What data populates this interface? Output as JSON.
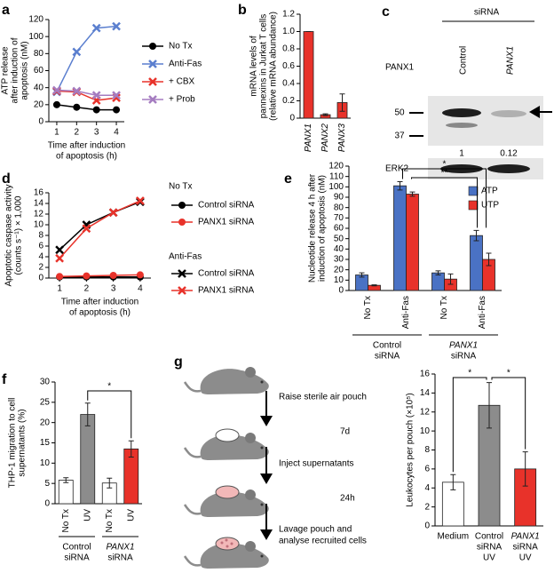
{
  "panel_labels": [
    "a",
    "b",
    "c",
    "d",
    "e",
    "f",
    "g"
  ],
  "chart_data": [
    {
      "type": "line",
      "ylabel": [
        "ATP release",
        "after induction of",
        "apoptosis (nM)"
      ],
      "xlabel": [
        "Time after induction",
        "of apoptosis (h)"
      ],
      "x": [
        1,
        2,
        3,
        4
      ],
      "xlim": [
        0.6,
        4.4
      ],
      "xticks": [
        1,
        2,
        3,
        4
      ],
      "ylim": [
        0,
        120
      ],
      "yticks": [
        0,
        20,
        40,
        60,
        80,
        100,
        120
      ],
      "series": [
        {
          "name": "No Tx",
          "color": "#000000",
          "marker": "circle",
          "values": [
            20,
            17,
            14,
            14
          ]
        },
        {
          "name": "Anti-Fas",
          "color": "#5b7fcf",
          "marker": "cross",
          "values": [
            35,
            82,
            110,
            112
          ]
        },
        {
          "name": "+ CBX",
          "color": "#e8322a",
          "marker": "cross",
          "values": [
            36,
            35,
            25,
            28
          ]
        },
        {
          "name": "+ Prob",
          "color": "#a57cc0",
          "marker": "cross",
          "values": [
            37,
            36,
            31,
            31
          ]
        }
      ]
    },
    {
      "type": "bar",
      "ylabel": [
        "mRNA levels of",
        "pannexins in Jurkat T cells",
        "(relative mRNA abundance)"
      ],
      "categories": [
        "PANX1",
        "PANX2",
        "PANX3"
      ],
      "values": [
        1,
        0.04,
        0.18
      ],
      "errors": [
        0,
        0.01,
        0.1
      ],
      "color": "#e8322a",
      "ylim": [
        0,
        1.2
      ],
      "yticks": [
        0,
        0.2,
        0.4,
        0.6,
        0.8,
        {
          "value": 1,
          "label": "1.0"
        },
        1.2
      ]
    },
    {
      "type": "line",
      "ylabel": [
        "Apoptotic caspase activity",
        "(counts s⁻¹) × 1,000"
      ],
      "xlabel": [
        "Time after induction",
        "of apoptosis (h)"
      ],
      "x": [
        1,
        2,
        3,
        4
      ],
      "xlim": [
        0.6,
        4.4
      ],
      "xticks": [
        1,
        2,
        3,
        4
      ],
      "ylim": [
        0,
        16
      ],
      "yticks": [
        0,
        2,
        4,
        6,
        8,
        10,
        12,
        14,
        16
      ],
      "series_groups": [
        {
          "name": "No Tx",
          "series": [
            {
              "name": "Control siRNA",
              "color": "#000000",
              "marker": "circle",
              "values": [
                0.2,
                0.2,
                0.2,
                0.2
              ]
            },
            {
              "name": "PANX1 siRNA",
              "color": "#e8322a",
              "marker": "circle",
              "values": [
                0.3,
                0.4,
                0.5,
                0.6
              ]
            }
          ]
        },
        {
          "name": "Anti-Fas",
          "series": [
            {
              "name": "Control siRNA",
              "color": "#000000",
              "marker": "cross",
              "values": [
                5.3,
                10,
                12.3,
                14.3
              ]
            },
            {
              "name": "PANX1 siRNA",
              "color": "#e8322a",
              "marker": "cross",
              "values": [
                3.7,
                9.3,
                12.3,
                14.5
              ]
            }
          ]
        }
      ]
    },
    {
      "type": "bar",
      "ylabel": [
        "Nucleotide release 4 h after",
        "induction of apoptosis (nM)"
      ],
      "categories": [
        "No Tx",
        "Anti-Fas",
        "No Tx",
        "Anti-Fas"
      ],
      "series": [
        {
          "name": "ATP",
          "color": "#4a72c4",
          "values": [
            15,
            101,
            17,
            53
          ],
          "errors": [
            2,
            4,
            2,
            5
          ]
        },
        {
          "name": "UTP",
          "color": "#e8322a",
          "values": [
            5,
            93,
            11,
            30
          ],
          "errors": [
            0.5,
            2,
            5,
            6
          ]
        }
      ],
      "groups": [
        {
          "label": [
            "Control",
            "siRNA"
          ]
        },
        {
          "label": [
            "PANX1",
            "siRNA"
          ],
          "color": "#e8322a"
        }
      ],
      "annotations": [
        "*",
        "**"
      ],
      "ylim": [
        0,
        120
      ],
      "yticks": [
        0,
        10,
        20,
        30,
        40,
        50,
        60,
        70,
        80,
        90,
        100,
        110,
        120
      ]
    },
    {
      "type": "bar",
      "ylabel": [
        "THP-1 migration to cell",
        "supernatants (%)"
      ],
      "categories": [
        "No Tx",
        "UV",
        "No Tx",
        "UV"
      ],
      "values": [
        5.8,
        22,
        5.1,
        13.5
      ],
      "errors": [
        0.6,
        2.8,
        1.2,
        2
      ],
      "colors": [
        "#ffffff",
        "#8c8c8c",
        "#ffffff",
        "#e8322a"
      ],
      "groups": [
        {
          "label": [
            "Control",
            "siRNA"
          ]
        },
        {
          "label": [
            "PANX1",
            "siRNA"
          ],
          "color": "#e8322a"
        }
      ],
      "annotations": [
        "*"
      ],
      "ylim": [
        0,
        30
      ],
      "yticks": [
        0,
        5,
        10,
        15,
        20,
        25,
        30
      ]
    },
    {
      "type": "bar",
      "ylabel": [
        "Leukocytes per pouch (×10⁵)"
      ],
      "categories": [
        [
          "Medium"
        ],
        [
          "Control",
          "siRNA",
          "UV"
        ],
        [
          "PANX1",
          "siRNA",
          "UV"
        ]
      ],
      "category_label_colors": [
        "#000000",
        "#000000",
        "#e8322a"
      ],
      "values": [
        4.6,
        12.7,
        6
      ],
      "errors": [
        0.8,
        2.4,
        1.8
      ],
      "colors": [
        "#ffffff",
        "#8c8c8c",
        "#e8322a"
      ],
      "annotations": [
        "*",
        "*"
      ],
      "ylim": [
        0,
        16
      ],
      "yticks": [
        0,
        2,
        4,
        6,
        8,
        10,
        12,
        14,
        16
      ]
    }
  ],
  "blot": {
    "header": "siRNA",
    "lanes": [
      "Control",
      "PANX1"
    ],
    "rows": [
      "PANX1",
      "ERK2"
    ],
    "markers": [
      "50",
      "37"
    ],
    "quantification": [
      1,
      0.12
    ]
  },
  "diagram": {
    "steps": [
      "Raise sterile air pouch",
      "Inject supernatants",
      [
        "Lavage pouch and",
        "analyse recruited cells"
      ]
    ],
    "intervals": [
      "7d",
      "24h"
    ]
  }
}
